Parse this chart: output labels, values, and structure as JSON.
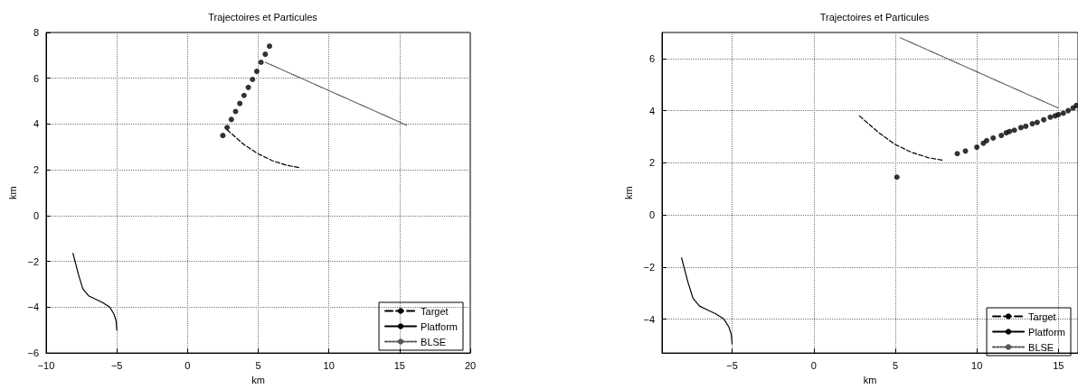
{
  "chart_data": [
    {
      "type": "line",
      "title": "Trajectoires et Particules",
      "xlabel": "km",
      "ylabel": "km",
      "xlim": [
        -10,
        20
      ],
      "xticks": [
        -10,
        -5,
        0,
        5,
        10,
        15,
        20
      ],
      "ylim": [
        -6,
        8
      ],
      "yticks": [
        -6,
        -4,
        -2,
        0,
        2,
        4,
        6,
        8
      ],
      "grid": true,
      "legend": "bottom right",
      "series": [
        {
          "name": "Target",
          "color": "#000000",
          "line_style": "dashed",
          "x": [
            2.8,
            4,
            5,
            6,
            7,
            7.9
          ],
          "values": [
            3.75,
            3.1,
            2.7,
            2.4,
            2.2,
            2.1
          ]
        },
        {
          "name": "Platform",
          "color": "#000000",
          "line_style": "solid",
          "x": [
            -8.1,
            -7.7,
            -7.4,
            -7,
            -6.5,
            -6,
            -5.5,
            -5.2,
            -5.05,
            -5
          ],
          "values": [
            -1.65,
            -2.6,
            -3.2,
            -3.5,
            -3.65,
            -3.8,
            -4.0,
            -4.3,
            -4.6,
            -5
          ]
        },
        {
          "name": "BLSE",
          "color": "#555555",
          "line_style": "dotted",
          "x": [
            5.5,
            15.5
          ],
          "values": [
            6.7,
            3.95
          ]
        },
        {
          "type": "scatter",
          "color": "#000000",
          "marker": "circle",
          "x": [
            2.5,
            2.8,
            3.1,
            3.4,
            3.7,
            4.0,
            4.3,
            4.6,
            4.9,
            5.2,
            5.5,
            5.8
          ],
          "values": [
            3.5,
            3.85,
            4.2,
            4.55,
            4.9,
            5.25,
            5.6,
            5.95,
            6.3,
            6.7,
            7.05,
            7.4
          ]
        }
      ]
    },
    {
      "type": "line",
      "title": "Trajectoires et Particules",
      "xlabel": "km",
      "ylabel": "km",
      "xlim": [
        -9.3,
        16.2
      ],
      "xticks": [
        -5,
        0,
        5,
        10,
        15
      ],
      "ylim": [
        -5.3,
        7
      ],
      "yticks": [
        -4,
        -2,
        0,
        2,
        4,
        6
      ],
      "grid": true,
      "legend": "bottom right",
      "series": [
        {
          "name": "Target",
          "color": "#000000",
          "line_style": "dashed",
          "x": [
            2.8,
            4,
            5,
            6,
            7,
            7.9
          ],
          "values": [
            3.8,
            3.15,
            2.7,
            2.4,
            2.2,
            2.1
          ]
        },
        {
          "name": "Platform",
          "color": "#000000",
          "line_style": "solid",
          "x": [
            -8.1,
            -7.7,
            -7.4,
            -7,
            -6.5,
            -6,
            -5.5,
            -5.2,
            -5.05,
            -5
          ],
          "values": [
            -1.65,
            -2.6,
            -3.2,
            -3.5,
            -3.65,
            -3.8,
            -4.0,
            -4.3,
            -4.6,
            -4.95
          ]
        },
        {
          "name": "BLSE",
          "color": "#555555",
          "line_style": "dotted",
          "x": [
            5.3,
            15
          ],
          "values": [
            6.8,
            4.1
          ]
        },
        {
          "type": "scatter",
          "color": "#000000",
          "marker": "circle",
          "x": [
            5.1,
            8.8,
            9.3,
            10,
            10.4,
            10.6,
            11,
            11.5,
            11.8,
            12,
            12.3,
            12.7,
            13,
            13.4,
            13.7,
            14.1,
            14.5,
            14.8,
            15,
            15.3,
            15.6,
            15.9,
            16.1
          ],
          "values": [
            1.45,
            2.35,
            2.45,
            2.6,
            2.75,
            2.85,
            2.95,
            3.05,
            3.15,
            3.2,
            3.25,
            3.35,
            3.4,
            3.5,
            3.55,
            3.65,
            3.75,
            3.8,
            3.85,
            3.9,
            4.0,
            4.1,
            4.2
          ]
        }
      ]
    }
  ]
}
